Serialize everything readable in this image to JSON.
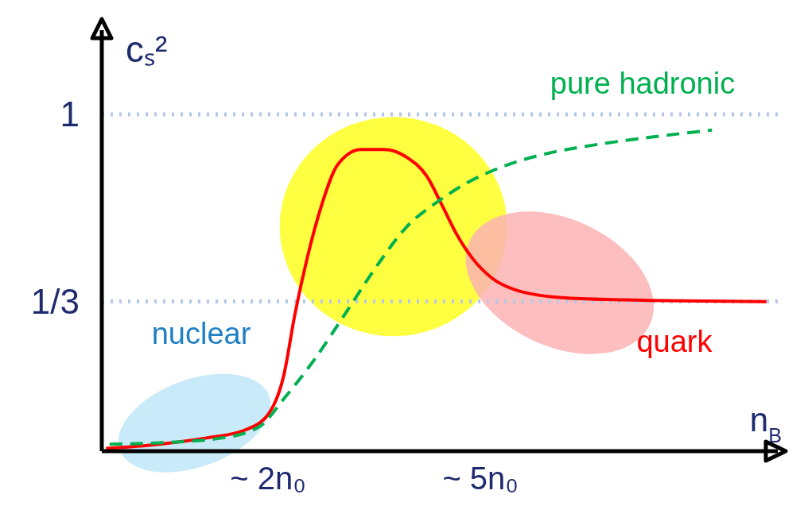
{
  "chart_data": {
    "type": "line",
    "xlabel": "n$_{B}$",
    "ylabel": "cₛ²",
    "xlim": [
      -0.35,
      9.2
    ],
    "ylim": [
      -0.2,
      1.3
    ],
    "xticks": [
      {
        "value": 2,
        "label": "~ 2n₀"
      },
      {
        "value": 5,
        "label": "~ 5n₀"
      }
    ],
    "yticks": [
      {
        "value": 0.3333,
        "label": "1/3"
      },
      {
        "value": 1,
        "label": "1"
      }
    ],
    "ref_lines": [
      {
        "axis": "y",
        "value": 1,
        "color": "#b4c7e7",
        "line_style": "dotted"
      },
      {
        "axis": "y",
        "value": 0.3333,
        "color": "#b4c7e7",
        "line_style": "dotted"
      }
    ],
    "series": [
      {
        "color": "#ff0000",
        "line_style": "solid",
        "x": [
          -0.29,
          0.47,
          1.13,
          1.67,
          2.0,
          2.22,
          2.38,
          2.55,
          2.76,
          2.98,
          3.31,
          3.64,
          3.96,
          4.24,
          4.45,
          4.67,
          4.89,
          5.16,
          5.49,
          6.15,
          7.02,
          9.04
        ],
        "values": [
          -0.19,
          -0.175,
          -0.153,
          -0.125,
          -0.069,
          0.069,
          0.29,
          0.486,
          0.68,
          0.82,
          0.875,
          0.875,
          0.847,
          0.78,
          0.68,
          0.57,
          0.486,
          0.417,
          0.375,
          0.347,
          0.339,
          0.333
        ]
      },
      {
        "color": "#00b050",
        "line_style": "dashed",
        "x": [
          -0.24,
          0.47,
          1.35,
          1.89,
          2.22,
          2.65,
          3.09,
          3.53,
          3.96,
          4.4,
          4.84,
          5.38,
          5.93,
          6.58,
          7.35,
          8.27
        ],
        "values": [
          -0.175,
          -0.17,
          -0.153,
          -0.11,
          -0.014,
          0.125,
          0.29,
          0.458,
          0.6,
          0.69,
          0.76,
          0.82,
          0.86,
          0.89,
          0.917,
          0.944
        ]
      }
    ],
    "annotations": [
      "pure hadronic",
      "nuclear",
      "quark"
    ]
  }
}
